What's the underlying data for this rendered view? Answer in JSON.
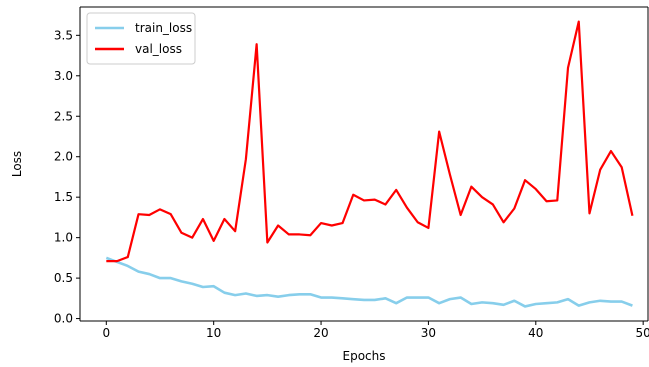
{
  "chart_data": {
    "type": "line",
    "title": "",
    "xlabel": "Epochs",
    "ylabel": "Loss",
    "xlim": [
      -2.45,
      50.45
    ],
    "ylim": [
      -0.03,
      3.85
    ],
    "xticks": [
      0,
      10,
      20,
      30,
      40,
      50
    ],
    "yticks": [
      0.0,
      0.5,
      1.0,
      1.5,
      2.0,
      2.5,
      3.0,
      3.5
    ],
    "xtick_labels": [
      "0",
      "10",
      "20",
      "30",
      "40",
      "50"
    ],
    "ytick_labels": [
      "0.0",
      "0.5",
      "1.0",
      "1.5",
      "2.0",
      "2.5",
      "3.0",
      "3.5"
    ],
    "grid": false,
    "legend_position": "top-left",
    "x": [
      0,
      1,
      2,
      3,
      4,
      5,
      6,
      7,
      8,
      9,
      10,
      11,
      12,
      13,
      14,
      15,
      16,
      17,
      18,
      19,
      20,
      21,
      22,
      23,
      24,
      25,
      26,
      27,
      28,
      29,
      30,
      31,
      32,
      33,
      34,
      35,
      36,
      37,
      38,
      39,
      40,
      41,
      42,
      43,
      44,
      45,
      46,
      47,
      48,
      49
    ],
    "series": [
      {
        "name": "train_loss",
        "color": "#87ceeb",
        "values": [
          0.75,
          0.7,
          0.65,
          0.58,
          0.55,
          0.5,
          0.5,
          0.46,
          0.43,
          0.39,
          0.4,
          0.32,
          0.29,
          0.31,
          0.28,
          0.29,
          0.27,
          0.29,
          0.3,
          0.3,
          0.26,
          0.26,
          0.25,
          0.24,
          0.23,
          0.23,
          0.25,
          0.19,
          0.26,
          0.26,
          0.26,
          0.19,
          0.24,
          0.26,
          0.18,
          0.2,
          0.19,
          0.17,
          0.22,
          0.15,
          0.18,
          0.19,
          0.2,
          0.24,
          0.16,
          0.2,
          0.22,
          0.21,
          0.21,
          0.16
        ]
      },
      {
        "name": "val_loss",
        "color": "#ff0000",
        "values": [
          0.71,
          0.71,
          0.76,
          1.29,
          1.28,
          1.35,
          1.29,
          1.06,
          1.0,
          1.23,
          0.96,
          1.23,
          1.08,
          1.97,
          3.39,
          0.94,
          1.15,
          1.04,
          1.04,
          1.03,
          1.18,
          1.15,
          1.18,
          1.53,
          1.46,
          1.47,
          1.41,
          1.59,
          1.37,
          1.19,
          1.12,
          2.31,
          1.78,
          1.28,
          1.63,
          1.5,
          1.41,
          1.19,
          1.36,
          1.71,
          1.6,
          1.45,
          1.46,
          3.1,
          3.67,
          1.3,
          1.84,
          2.07,
          1.87,
          1.27
        ]
      }
    ]
  }
}
